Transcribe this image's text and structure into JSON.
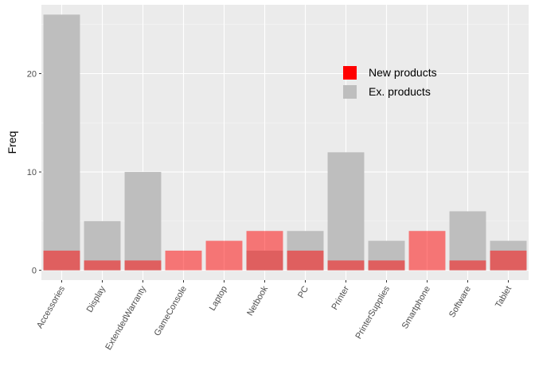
{
  "chart_data": {
    "type": "bar",
    "title": "",
    "xlabel": "",
    "ylabel": "Freq",
    "ylim": [
      -1,
      27
    ],
    "yticks": [
      0,
      10,
      20
    ],
    "grid": true,
    "legend_position": "top-right",
    "categories": [
      "Accessories",
      "Display",
      "ExtendedWarranty",
      "GameConsole",
      "Laptop",
      "Netbook",
      "PC",
      "Printer",
      "PrinterSupplies",
      "Smartphone",
      "Software",
      "Tablet"
    ],
    "series": [
      {
        "name": "Ex. products",
        "color": "#bebebe",
        "values": [
          26,
          5,
          10,
          0,
          0,
          2,
          4,
          12,
          3,
          0,
          6,
          3
        ]
      },
      {
        "name": "New products",
        "color": "#ff0000",
        "values": [
          2,
          1,
          1,
          2,
          3,
          4,
          2,
          1,
          1,
          4,
          1,
          2
        ]
      }
    ]
  }
}
